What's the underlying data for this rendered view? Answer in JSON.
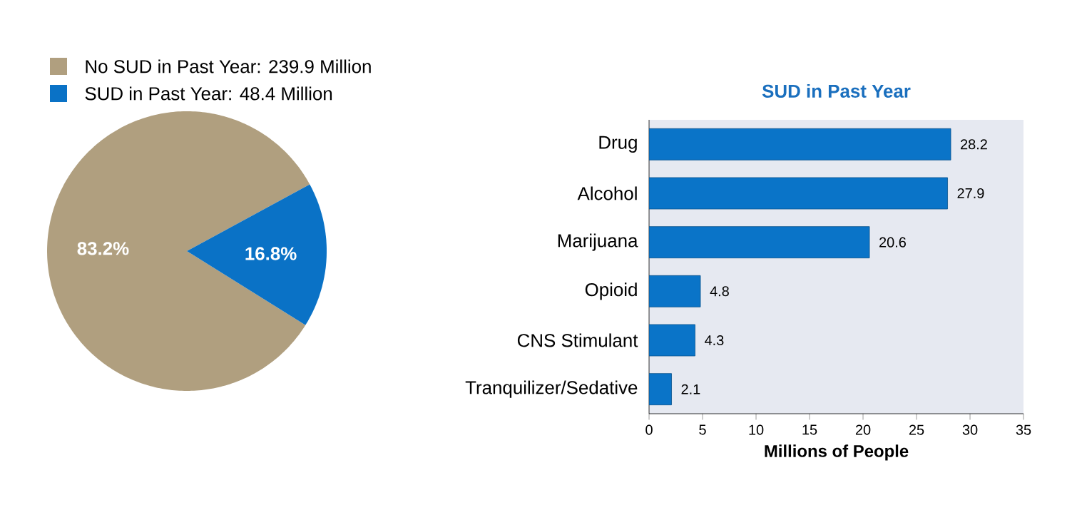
{
  "chart_data": [
    {
      "type": "pie",
      "categories": [
        "No SUD in Past Year: 239.9 Million",
        "SUD in Past Year: 48.4 Million"
      ],
      "values": [
        83.2,
        16.8
      ],
      "colors": [
        "#b09f7f",
        "#0a72c6"
      ],
      "value_labels": [
        "83.2%",
        "16.8%"
      ],
      "legend": "top"
    },
    {
      "type": "bar",
      "orientation": "horizontal",
      "title": "SUD in Past Year",
      "xlabel": "Millions of People",
      "categories": [
        "Drug",
        "Alcohol",
        "Marijuana",
        "Opioid",
        "CNS Stimulant",
        "Tranquilizer/Sedative"
      ],
      "values": [
        28.2,
        27.9,
        20.6,
        4.8,
        4.3,
        2.1
      ],
      "color": "#0a74c8",
      "xlim": [
        0,
        35
      ],
      "xticks": [
        0,
        5,
        10,
        15,
        20,
        25,
        30,
        35
      ],
      "data_labels": true
    }
  ]
}
